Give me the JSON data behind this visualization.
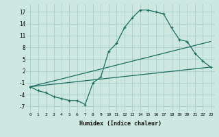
{
  "xlabel": "Humidex (Indice chaleur)",
  "ylabel": "",
  "bg_color": "#cce8e0",
  "line_color": "#1a6b60",
  "grid_color": "#aacfc8",
  "xlim": [
    -0.5,
    23.5
  ],
  "ylim": [
    -8.5,
    19
  ],
  "xticks": [
    0,
    1,
    2,
    3,
    4,
    5,
    6,
    7,
    8,
    9,
    10,
    11,
    12,
    13,
    14,
    15,
    16,
    17,
    18,
    19,
    20,
    21,
    22,
    23
  ],
  "yticks": [
    -7,
    -4,
    -1,
    2,
    5,
    8,
    11,
    14,
    17
  ],
  "line1_x": [
    0,
    1,
    2,
    3,
    4,
    5,
    6,
    7,
    8,
    9,
    10,
    11,
    12,
    13,
    14,
    15,
    16,
    17,
    18,
    19,
    20,
    21,
    22,
    23
  ],
  "line1_y": [
    -2,
    -3,
    -3.5,
    -4.5,
    -5,
    -5.5,
    -5.5,
    -6.5,
    -1,
    0.5,
    7,
    9,
    13,
    15.5,
    17.5,
    17.5,
    17,
    16.5,
    13,
    10,
    9.5,
    6.5,
    4.5,
    3
  ],
  "line2_x": [
    0,
    23
  ],
  "line2_y": [
    -2,
    3
  ],
  "line3_x": [
    0,
    23
  ],
  "line3_y": [
    -2,
    9.5
  ]
}
